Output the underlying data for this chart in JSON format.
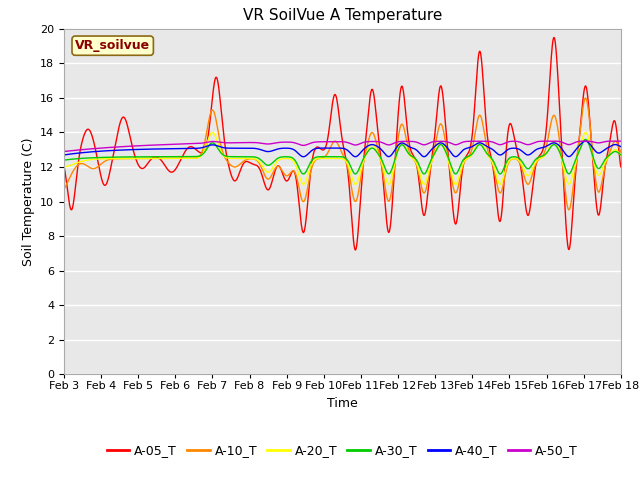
{
  "title": "VR SoilVue A Temperature",
  "xlabel": "Time",
  "ylabel": "Soil Temperature (C)",
  "ylim": [
    0,
    20
  ],
  "yticks": [
    0,
    2,
    4,
    6,
    8,
    10,
    12,
    14,
    16,
    18,
    20
  ],
  "xlim": [
    0,
    15
  ],
  "xtick_labels": [
    "Feb 3",
    "Feb 4",
    "Feb 5",
    "Feb 6",
    "Feb 7",
    "Feb 8",
    "Feb 9",
    "Feb 10",
    "Feb 11",
    "Feb 12",
    "Feb 13",
    "Feb 14",
    "Feb 15",
    "Feb 16",
    "Feb 17",
    "Feb 18"
  ],
  "xtick_positions": [
    0,
    1,
    2,
    3,
    4,
    5,
    6,
    7,
    8,
    9,
    10,
    11,
    12,
    13,
    14,
    15
  ],
  "series_colors": [
    "#ff0000",
    "#ff8800",
    "#ffff00",
    "#00cc00",
    "#0000ff",
    "#cc00cc"
  ],
  "series_labels": [
    "A-05_T",
    "A-10_T",
    "A-20_T",
    "A-30_T",
    "A-40_T",
    "A-50_T"
  ],
  "legend_label": "VR_soilvue",
  "background_color": "#e8e8e8",
  "figure_background": "#ffffff",
  "grid_color": "#ffffff",
  "title_fontsize": 11,
  "axis_fontsize": 9,
  "tick_fontsize": 8,
  "legend_fontsize": 9
}
